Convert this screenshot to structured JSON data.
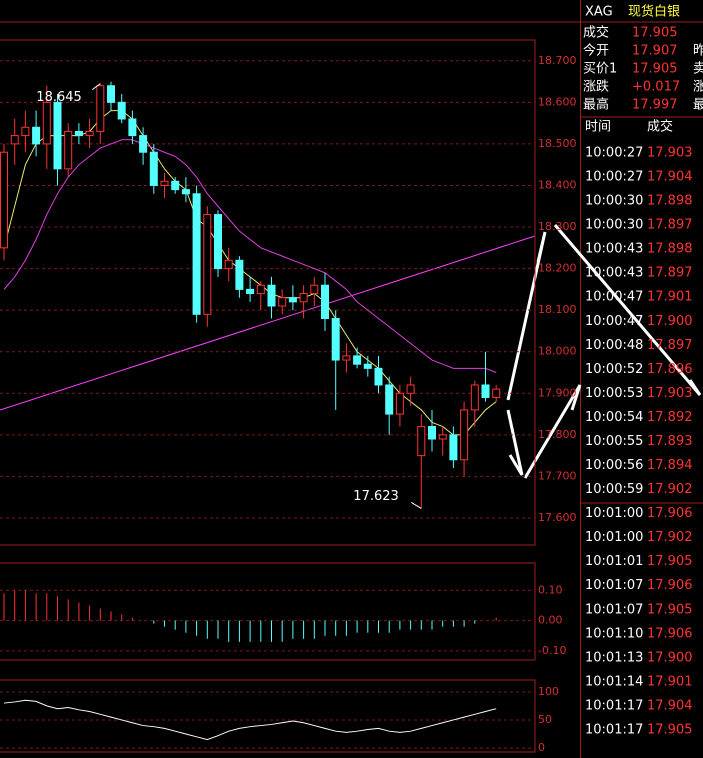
{
  "header": {
    "symbol": "XAG",
    "name": "现货白银"
  },
  "quote": {
    "rows": [
      {
        "label": "成交",
        "value": "17.905"
      },
      {
        "label": "今开",
        "value": "17.907",
        "extra": "昨"
      },
      {
        "label": "买价1",
        "value": "17.905",
        "extra": "卖"
      },
      {
        "label": "涨跌",
        "value": "+0.017",
        "extra": "涨"
      },
      {
        "label": "最高",
        "value": "17.997",
        "extra": "最"
      }
    ]
  },
  "trades": {
    "columns": [
      "时间",
      "成交"
    ],
    "rows": [
      [
        "10:00:27",
        "17.903"
      ],
      [
        "10:00:27",
        "17.904"
      ],
      [
        "10:00:30",
        "17.898"
      ],
      [
        "10:00:30",
        "17.897"
      ],
      [
        "10:00:43",
        "17.898"
      ],
      [
        "10:00:43",
        "17.897"
      ],
      [
        "10:00:47",
        "17.901"
      ],
      [
        "10:00:47",
        "17.900"
      ],
      [
        "10:00:48",
        "17.897"
      ],
      [
        "10:00:52",
        "17.896"
      ],
      [
        "10:00:53",
        "17.903"
      ],
      [
        "10:00:54",
        "17.892"
      ],
      [
        "10:00:55",
        "17.893"
      ],
      [
        "10:00:56",
        "17.894"
      ],
      [
        "10:00:59",
        "17.902"
      ],
      [
        "10:01:00",
        "17.906"
      ],
      [
        "10:01:00",
        "17.902"
      ],
      [
        "10:01:01",
        "17.905"
      ],
      [
        "10:01:07",
        "17.906"
      ],
      [
        "10:01:07",
        "17.905"
      ],
      [
        "10:01:10",
        "17.906"
      ],
      [
        "10:01:13",
        "17.900"
      ],
      [
        "10:01:14",
        "17.901"
      ],
      [
        "10:01:17",
        "17.904"
      ],
      [
        "10:01:17",
        "17.905"
      ]
    ]
  },
  "chart_data": [
    {
      "type": "candlestick",
      "up_color": "#ff3232",
      "down_color": "#54ffff",
      "ylim": [
        17.535,
        18.75
      ],
      "yticks": [
        {
          "value": 18.7,
          "label": "18.700"
        },
        {
          "value": 18.6,
          "label": "18.600"
        },
        {
          "value": 18.5,
          "label": "18.500"
        },
        {
          "value": 18.4,
          "label": "18.400"
        },
        {
          "value": 18.3,
          "label": "18.300"
        },
        {
          "value": 18.2,
          "label": "18.200"
        },
        {
          "value": 18.1,
          "label": "18.100"
        },
        {
          "value": 18.0,
          "label": "18.000"
        },
        {
          "value": 17.9,
          "label": "17.900"
        },
        {
          "value": 17.8,
          "label": "17.800"
        },
        {
          "value": 17.7,
          "label": "17.700"
        },
        {
          "value": 17.6,
          "label": "17.600"
        }
      ],
      "annotations": [
        {
          "text": "18.645",
          "value": 18.645,
          "index": 9
        },
        {
          "text": "17.623",
          "value": 17.623,
          "index": 39
        }
      ],
      "open": [
        18.25,
        18.5,
        18.52,
        18.54,
        18.5,
        18.6,
        18.44,
        18.53,
        18.52,
        18.53,
        18.64,
        18.6,
        18.56,
        18.52,
        18.48,
        18.4,
        18.41,
        18.39,
        18.38,
        18.09,
        18.33,
        18.2,
        18.22,
        18.15,
        18.14,
        18.16,
        18.11,
        18.13,
        18.12,
        18.14,
        18.16,
        18.08,
        17.98,
        17.99,
        17.97,
        17.96,
        17.92,
        17.85,
        17.9,
        17.75,
        17.82,
        17.79,
        17.8,
        17.74,
        17.86,
        17.92,
        17.89
      ],
      "high": [
        18.5,
        18.56,
        18.58,
        18.58,
        18.64,
        18.62,
        18.55,
        18.55,
        18.56,
        18.645,
        18.65,
        18.62,
        18.58,
        18.54,
        18.5,
        18.43,
        18.42,
        18.42,
        18.4,
        18.35,
        18.34,
        18.25,
        18.23,
        18.18,
        18.17,
        18.18,
        18.15,
        18.16,
        18.16,
        18.18,
        18.19,
        18.1,
        18.02,
        18.01,
        17.99,
        17.99,
        17.94,
        17.92,
        17.94,
        17.85,
        17.86,
        17.82,
        17.82,
        17.88,
        17.93,
        18.0,
        17.92
      ],
      "low": [
        18.22,
        18.45,
        18.48,
        18.47,
        18.44,
        18.4,
        18.42,
        18.5,
        18.49,
        18.5,
        18.58,
        18.55,
        18.5,
        18.45,
        18.38,
        18.37,
        18.38,
        18.36,
        18.07,
        18.06,
        18.18,
        18.17,
        18.13,
        18.12,
        18.1,
        18.08,
        18.09,
        18.1,
        18.08,
        18.11,
        18.05,
        17.86,
        17.95,
        17.96,
        17.94,
        17.9,
        17.8,
        17.82,
        17.87,
        17.623,
        17.76,
        17.75,
        17.72,
        17.7,
        17.82,
        17.88,
        17.88
      ],
      "close": [
        18.48,
        18.52,
        18.54,
        18.5,
        18.6,
        18.44,
        18.53,
        18.52,
        18.53,
        18.64,
        18.6,
        18.56,
        18.52,
        18.48,
        18.4,
        18.41,
        18.39,
        18.38,
        18.09,
        18.33,
        18.2,
        18.22,
        18.15,
        18.14,
        18.16,
        18.11,
        18.13,
        18.12,
        18.14,
        18.16,
        18.08,
        17.98,
        17.99,
        17.97,
        17.96,
        17.92,
        17.85,
        17.9,
        17.92,
        17.82,
        17.79,
        17.8,
        17.74,
        17.86,
        17.92,
        17.89,
        17.91
      ],
      "lines": [
        {
          "color": "#e8e870",
          "values": [
            18.25,
            18.35,
            18.45,
            18.5,
            18.52,
            18.52,
            18.52,
            18.52,
            18.53,
            18.56,
            18.58,
            18.58,
            18.56,
            18.52,
            18.48,
            18.44,
            18.41,
            18.39,
            18.32,
            18.3,
            18.26,
            18.22,
            18.2,
            18.18,
            18.16,
            18.14,
            18.13,
            18.13,
            18.13,
            18.14,
            18.12,
            18.08,
            18.04,
            18.0,
            17.98,
            17.96,
            17.93,
            17.9,
            17.88,
            17.86,
            17.83,
            17.82,
            17.8,
            17.8,
            17.83,
            17.86,
            17.88
          ]
        },
        {
          "color": "#e040e0",
          "values": [
            18.15,
            18.18,
            18.22,
            18.27,
            18.33,
            18.38,
            18.42,
            18.45,
            18.47,
            18.49,
            18.5,
            18.51,
            18.51,
            18.5,
            18.49,
            18.48,
            18.47,
            18.45,
            18.42,
            18.38,
            18.35,
            18.32,
            18.29,
            18.27,
            18.25,
            18.24,
            18.23,
            18.22,
            18.21,
            18.2,
            18.19,
            18.17,
            18.15,
            18.12,
            18.1,
            18.08,
            18.06,
            18.04,
            18.02,
            18.0,
            17.98,
            17.97,
            17.96,
            17.96,
            17.96,
            17.96,
            17.95
          ]
        }
      ]
    },
    {
      "type": "bar",
      "up_color": "#ff3232",
      "down_color": "#54ffff",
      "ylim": [
        -0.13,
        0.19
      ],
      "yticks": [
        {
          "value": 0.1,
          "label": "0.10"
        },
        {
          "value": 0,
          "label": "0.00"
        },
        {
          "value": -0.1,
          "label": "-0.10"
        }
      ],
      "values": [
        0.09,
        0.1,
        0.1,
        0.09,
        0.09,
        0.08,
        0.07,
        0.06,
        0.05,
        0.04,
        0.03,
        0.02,
        0.01,
        0.0,
        -0.01,
        -0.02,
        -0.03,
        -0.04,
        -0.05,
        -0.06,
        -0.06,
        -0.07,
        -0.07,
        -0.07,
        -0.07,
        -0.07,
        -0.07,
        -0.06,
        -0.06,
        -0.06,
        -0.05,
        -0.05,
        -0.05,
        -0.04,
        -0.04,
        -0.04,
        -0.04,
        -0.03,
        -0.03,
        -0.03,
        -0.03,
        -0.02,
        -0.02,
        -0.02,
        -0.01,
        0.0,
        0.01
      ]
    },
    {
      "type": "line",
      "ylim": [
        -7,
        121
      ],
      "yticks": [
        100,
        50,
        0
      ],
      "series": [
        {
          "color": "#ffffff",
          "values": [
            80,
            82,
            85,
            83,
            75,
            70,
            72,
            68,
            65,
            60,
            55,
            50,
            45,
            40,
            38,
            35,
            30,
            25,
            20,
            15,
            22,
            30,
            35,
            38,
            40,
            42,
            45,
            48,
            45,
            40,
            35,
            30,
            28,
            30,
            33,
            35,
            30,
            28,
            30,
            35,
            40,
            45,
            50,
            55,
            60,
            65,
            70
          ]
        }
      ]
    }
  ]
}
